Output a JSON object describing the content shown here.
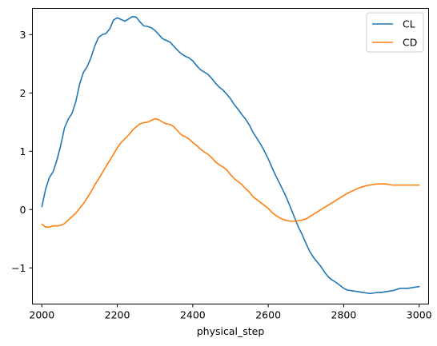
{
  "chart_data": {
    "type": "line",
    "title": "",
    "xlabel": "physical_step",
    "ylabel": "",
    "xlim": [
      1975,
      3025
    ],
    "ylim": [
      -1.62,
      3.45
    ],
    "xticks": [
      2000,
      2200,
      2400,
      2600,
      2800,
      3000
    ],
    "yticks": [
      -1,
      0,
      1,
      2,
      3
    ],
    "xtick_labels": [
      "2000",
      "2200",
      "2400",
      "2600",
      "2800",
      "3000"
    ],
    "ytick_labels": [
      "−1",
      "0",
      "1",
      "2",
      "3"
    ],
    "grid": false,
    "legend_position": "top-right",
    "series": [
      {
        "name": "CL",
        "color": "#1f77b4",
        "x": [
          2000,
          2010,
          2020,
          2030,
          2040,
          2050,
          2060,
          2070,
          2080,
          2090,
          2100,
          2110,
          2120,
          2130,
          2140,
          2150,
          2160,
          2170,
          2180,
          2190,
          2200,
          2210,
          2220,
          2230,
          2240,
          2250,
          2260,
          2270,
          2280,
          2290,
          2300,
          2310,
          2320,
          2330,
          2340,
          2350,
          2360,
          2370,
          2380,
          2390,
          2400,
          2410,
          2420,
          2430,
          2440,
          2450,
          2460,
          2470,
          2480,
          2490,
          2500,
          2510,
          2520,
          2530,
          2540,
          2550,
          2560,
          2570,
          2580,
          2590,
          2600,
          2610,
          2620,
          2630,
          2640,
          2650,
          2660,
          2670,
          2680,
          2690,
          2700,
          2710,
          2720,
          2730,
          2740,
          2750,
          2760,
          2770,
          2780,
          2790,
          2800,
          2810,
          2820,
          2830,
          2840,
          2850,
          2860,
          2870,
          2880,
          2890,
          2900,
          2910,
          2920,
          2930,
          2940,
          2950,
          2960,
          2970,
          2980,
          2990,
          3000
        ],
        "values": [
          0.05,
          0.35,
          0.55,
          0.65,
          0.85,
          1.1,
          1.4,
          1.55,
          1.65,
          1.85,
          2.15,
          2.35,
          2.45,
          2.6,
          2.8,
          2.95,
          3.0,
          3.02,
          3.1,
          3.25,
          3.29,
          3.26,
          3.23,
          3.27,
          3.31,
          3.3,
          3.22,
          3.15,
          3.14,
          3.12,
          3.07,
          3.0,
          2.93,
          2.9,
          2.87,
          2.8,
          2.73,
          2.67,
          2.63,
          2.6,
          2.55,
          2.47,
          2.4,
          2.36,
          2.32,
          2.25,
          2.17,
          2.1,
          2.05,
          1.98,
          1.9,
          1.8,
          1.72,
          1.63,
          1.55,
          1.45,
          1.32,
          1.22,
          1.12,
          1.0,
          0.87,
          0.72,
          0.58,
          0.45,
          0.32,
          0.18,
          0.02,
          -0.14,
          -0.3,
          -0.43,
          -0.58,
          -0.72,
          -0.82,
          -0.9,
          -0.98,
          -1.08,
          -1.16,
          -1.21,
          -1.25,
          -1.3,
          -1.35,
          -1.38,
          -1.39,
          -1.4,
          -1.41,
          -1.42,
          -1.43,
          -1.44,
          -1.43,
          -1.42,
          -1.42,
          -1.41,
          -1.4,
          -1.39,
          -1.37,
          -1.35,
          -1.35,
          -1.35,
          -1.34,
          -1.33,
          -1.32
        ]
      },
      {
        "name": "CD",
        "color": "#ff7f0e",
        "x": [
          2000,
          2010,
          2020,
          2030,
          2040,
          2050,
          2060,
          2070,
          2080,
          2090,
          2100,
          2110,
          2120,
          2130,
          2140,
          2150,
          2160,
          2170,
          2180,
          2190,
          2200,
          2210,
          2220,
          2230,
          2240,
          2250,
          2260,
          2270,
          2280,
          2290,
          2300,
          2310,
          2320,
          2330,
          2340,
          2350,
          2360,
          2370,
          2380,
          2390,
          2400,
          2410,
          2420,
          2430,
          2440,
          2450,
          2460,
          2470,
          2480,
          2490,
          2500,
          2510,
          2520,
          2530,
          2540,
          2550,
          2560,
          2570,
          2580,
          2590,
          2600,
          2610,
          2620,
          2630,
          2640,
          2650,
          2660,
          2670,
          2680,
          2690,
          2700,
          2710,
          2720,
          2730,
          2740,
          2750,
          2760,
          2770,
          2780,
          2790,
          2800,
          2810,
          2820,
          2830,
          2840,
          2850,
          2860,
          2870,
          2880,
          2890,
          2900,
          2910,
          2920,
          2930,
          2940,
          2950,
          2960,
          2970,
          2980,
          2990,
          3000
        ],
        "values": [
          -0.25,
          -0.3,
          -0.3,
          -0.28,
          -0.28,
          -0.27,
          -0.24,
          -0.18,
          -0.12,
          -0.06,
          0.02,
          0.1,
          0.2,
          0.3,
          0.42,
          0.52,
          0.63,
          0.74,
          0.84,
          0.95,
          1.06,
          1.15,
          1.21,
          1.28,
          1.36,
          1.42,
          1.47,
          1.49,
          1.5,
          1.53,
          1.56,
          1.54,
          1.5,
          1.47,
          1.46,
          1.42,
          1.35,
          1.28,
          1.25,
          1.21,
          1.15,
          1.1,
          1.04,
          0.99,
          0.95,
          0.89,
          0.82,
          0.77,
          0.73,
          0.68,
          0.6,
          0.53,
          0.48,
          0.43,
          0.36,
          0.3,
          0.22,
          0.17,
          0.12,
          0.07,
          0.02,
          -0.05,
          -0.1,
          -0.14,
          -0.17,
          -0.19,
          -0.2,
          -0.2,
          -0.19,
          -0.18,
          -0.16,
          -0.12,
          -0.08,
          -0.04,
          0.0,
          0.04,
          0.08,
          0.12,
          0.16,
          0.2,
          0.24,
          0.28,
          0.31,
          0.34,
          0.37,
          0.39,
          0.41,
          0.42,
          0.43,
          0.44,
          0.44,
          0.44,
          0.43,
          0.42,
          0.42,
          0.42,
          0.42,
          0.42,
          0.42,
          0.42,
          0.42
        ]
      }
    ]
  }
}
